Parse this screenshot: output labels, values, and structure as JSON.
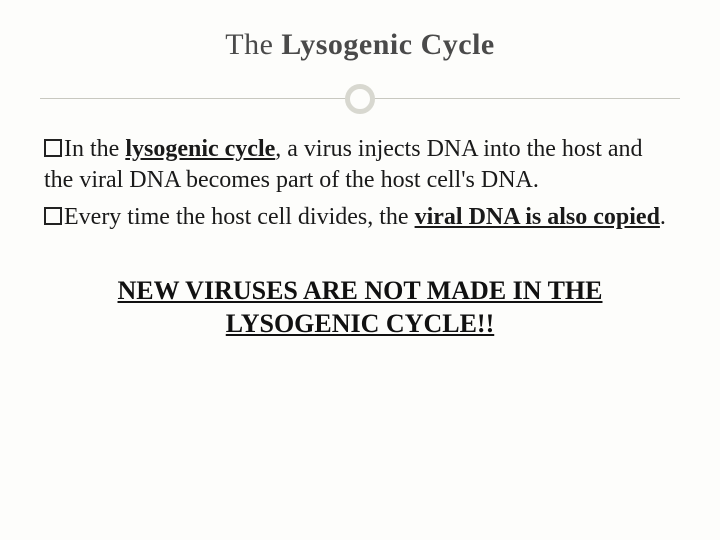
{
  "slide": {
    "title_prefix": "The ",
    "title_bold": "Lysogenic Cycle",
    "bullets": [
      {
        "pre": "In the ",
        "underlined": "lysogenic cycle",
        "post": ", a virus injects DNA into the host and the viral DNA becomes part of the host cell's DNA."
      },
      {
        "pre": "Every time the host cell divides, the ",
        "underlined": "viral DNA is also copied",
        "post": "."
      }
    ],
    "emphasis_line1": "NEW VIRUSES ARE NOT MADE IN THE",
    "emphasis_line2": "LYSOGENIC CYCLE!!"
  },
  "style": {
    "background_color": "#fdfdfb",
    "title_color": "#4a4a4a",
    "title_fontsize": 30,
    "body_fontsize": 24,
    "emphasis_fontsize": 26,
    "divider_circle_color": "#d8d8d0",
    "divider_line_color": "#c8c8c0",
    "text_color": "#1a1a1a",
    "font_family": "Georgia, serif"
  }
}
